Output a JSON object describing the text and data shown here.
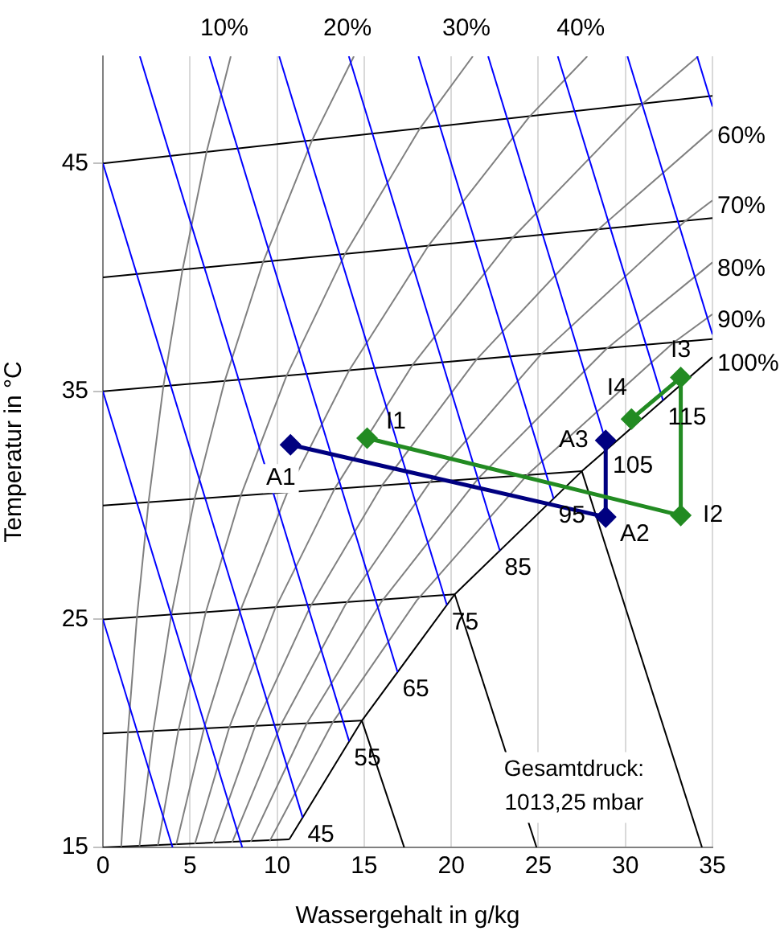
{
  "chart_data": {
    "type": "line",
    "xlabel": "Wassergehalt in g/kg",
    "ylabel": "Temperatur in °C",
    "xlim": [
      0,
      35
    ],
    "xticks": [
      0,
      5,
      10,
      15,
      20,
      25,
      30,
      35
    ],
    "ylim": [
      15,
      49.7
    ],
    "yticks": [
      15,
      25,
      35,
      45
    ],
    "grid": "x",
    "legend": false,
    "marker": "none",
    "series": [
      {
        "color": "#000000",
        "x": [
          0,
          10.7
        ],
        "values": [
          15,
          15.35
        ]
      },
      {
        "color": "#000000",
        "x": [
          0,
          14.87
        ],
        "values": [
          20,
          20.56
        ]
      },
      {
        "color": "#000000",
        "x": [
          0,
          20.2
        ],
        "values": [
          25,
          26.1
        ]
      },
      {
        "color": "#000000",
        "x": [
          0,
          27.5
        ],
        "values": [
          30,
          31.5
        ]
      },
      {
        "color": "#000000",
        "x": [
          0,
          35
        ],
        "values": [
          35,
          37.3
        ]
      },
      {
        "color": "#000000",
        "x": [
          0,
          35
        ],
        "values": [
          40,
          42.6
        ]
      },
      {
        "color": "#000000",
        "x": [
          0,
          35
        ],
        "values": [
          45,
          47.96
        ]
      },
      {
        "color": "#000000",
        "x": [
          14.87,
          17.3
        ],
        "values": [
          20.56,
          15
        ]
      },
      {
        "color": "#000000",
        "x": [
          20.2,
          24.9
        ],
        "values": [
          26.1,
          15
        ]
      },
      {
        "color": "#000000",
        "x": [
          27.5,
          34.4
        ],
        "values": [
          31.5,
          15
        ]
      },
      {
        "name": "10%",
        "color": "#808080",
        "x": [
          1.05,
          1.44,
          1.95,
          2.62,
          3.47,
          4.57,
          5.95,
          7.34
        ],
        "values": [
          15.03,
          20.05,
          25.09,
          30.15,
          35.22,
          40.34,
          45.5,
          49.7
        ]
      },
      {
        "name": "20%",
        "color": "#808080",
        "x": [
          2.1,
          2.89,
          3.92,
          5.26,
          6.99,
          9.2,
          12.0,
          14.41
        ],
        "values": [
          15.06,
          20.11,
          25.18,
          30.29,
          35.45,
          40.68,
          46.0,
          49.7
        ]
      },
      {
        "name": "30%",
        "color": "#808080",
        "x": [
          3.16,
          4.34,
          5.89,
          7.92,
          10.54,
          13.9,
          18.18,
          21.24
        ],
        "values": [
          15.09,
          20.16,
          25.27,
          30.44,
          35.68,
          41.03,
          46.51,
          49.7
        ]
      },
      {
        "name": "40%",
        "color": "#808080",
        "x": [
          4.21,
          5.8,
          7.88,
          10.6,
          14.13,
          18.68,
          24.48,
          27.81
        ],
        "values": [
          15.12,
          20.21,
          25.36,
          30.59,
          35.91,
          41.38,
          47.04,
          49.7
        ]
      },
      {
        "color": "#808080",
        "x": [
          5.28,
          7.26,
          9.88,
          13.31,
          17.77,
          23.52,
          30.91,
          34.18
        ],
        "values": [
          15.15,
          20.27,
          25.46,
          30.74,
          36.15,
          41.74,
          47.57,
          49.7
        ]
      },
      {
        "name": "60%",
        "color": "#808080",
        "x": [
          6.34,
          8.74,
          11.9,
          16.04,
          21.44,
          28.44,
          35
        ],
        "values": [
          15.18,
          20.32,
          25.55,
          30.89,
          36.39,
          42.1,
          46.48
        ]
      },
      {
        "name": "70%",
        "color": "#808080",
        "x": [
          7.41,
          10.22,
          13.92,
          18.8,
          25.16,
          33.43,
          35
        ],
        "values": [
          15.21,
          20.38,
          25.64,
          31.04,
          36.63,
          42.47,
          43.38
        ]
      },
      {
        "name": "80%",
        "color": "#808080",
        "x": [
          8.49,
          11.7,
          15.96,
          21.57,
          28.92,
          35
        ],
        "values": [
          15.24,
          20.43,
          25.74,
          31.2,
          36.87,
          40.66
        ]
      },
      {
        "name": "90%",
        "color": "#808080",
        "x": [
          9.57,
          13.2,
          18.02,
          24.38,
          32.73,
          35
        ],
        "values": [
          15.27,
          20.49,
          25.83,
          31.35,
          37.12,
          38.39
        ]
      },
      {
        "name": "100%",
        "color": "#000000",
        "x": [
          10.7,
          14.87,
          20.2,
          27.5,
          35
        ],
        "values": [
          15.35,
          20.56,
          26.1,
          31.5,
          36.5
        ]
      },
      {
        "color": "#0000ff",
        "x": [
          0,
          4
        ],
        "values": [
          25,
          15
        ]
      },
      {
        "color": "#0000ff",
        "x": [
          0,
          8
        ],
        "values": [
          35,
          15
        ]
      },
      {
        "name": "45",
        "color": "#0000ff",
        "x": [
          0,
          11.47
        ],
        "values": [
          45,
          16.31
        ]
      },
      {
        "name": "55",
        "color": "#0000ff",
        "x": [
          2.12,
          14.14
        ],
        "values": [
          49.7,
          19.65
        ]
      },
      {
        "name": "65",
        "color": "#0000ff",
        "x": [
          6.12,
          16.92
        ],
        "values": [
          49.7,
          22.69
        ]
      },
      {
        "name": "75",
        "color": "#0000ff",
        "x": [
          10.12,
          19.75
        ],
        "values": [
          49.7,
          25.63
        ]
      },
      {
        "name": "85",
        "color": "#0000ff",
        "x": [
          14.12,
          22.79
        ],
        "values": [
          49.7,
          28.02
        ]
      },
      {
        "name": "95",
        "color": "#0000ff",
        "x": [
          18.12,
          25.88
        ],
        "values": [
          49.7,
          30.3
        ]
      },
      {
        "name": "105",
        "color": "#0000ff",
        "x": [
          22.12,
          29.0
        ],
        "values": [
          49.7,
          32.5
        ]
      },
      {
        "name": "115",
        "color": "#0000ff",
        "x": [
          26.12,
          32.16
        ],
        "values": [
          49.7,
          34.61
        ]
      },
      {
        "color": "#0000ff",
        "x": [
          30.12,
          35
        ],
        "values": [
          49.7,
          37.5
        ]
      },
      {
        "color": "#0000ff",
        "x": [
          34.12,
          35
        ],
        "values": [
          49.7,
          47.5
        ]
      },
      {
        "color": "#000080",
        "marker": "diamond",
        "x": [
          10.77,
          28.87,
          28.87
        ],
        "values": [
          32.66,
          29.49,
          32.85
        ]
      },
      {
        "color": "#228b22",
        "marker": "diamond",
        "x": [
          15.17,
          33.18,
          33.18,
          30.35
        ],
        "values": [
          32.95,
          29.56,
          35.61,
          33.79
        ]
      }
    ],
    "annotations": [
      {
        "text": "A1",
        "x": 10.77,
        "y": 32.66
      },
      {
        "text": "A2",
        "x": 28.87,
        "y": 29.49
      },
      {
        "text": "A3",
        "x": 28.87,
        "y": 32.85
      },
      {
        "text": "I1",
        "x": 15.17,
        "y": 32.95
      },
      {
        "text": "I2",
        "x": 33.18,
        "y": 29.56
      },
      {
        "text": "I3",
        "x": 33.18,
        "y": 35.61
      },
      {
        "text": "I4",
        "x": 30.35,
        "y": 33.79
      },
      "Gesamtdruck: 1013,25 mbar"
    ]
  }
}
